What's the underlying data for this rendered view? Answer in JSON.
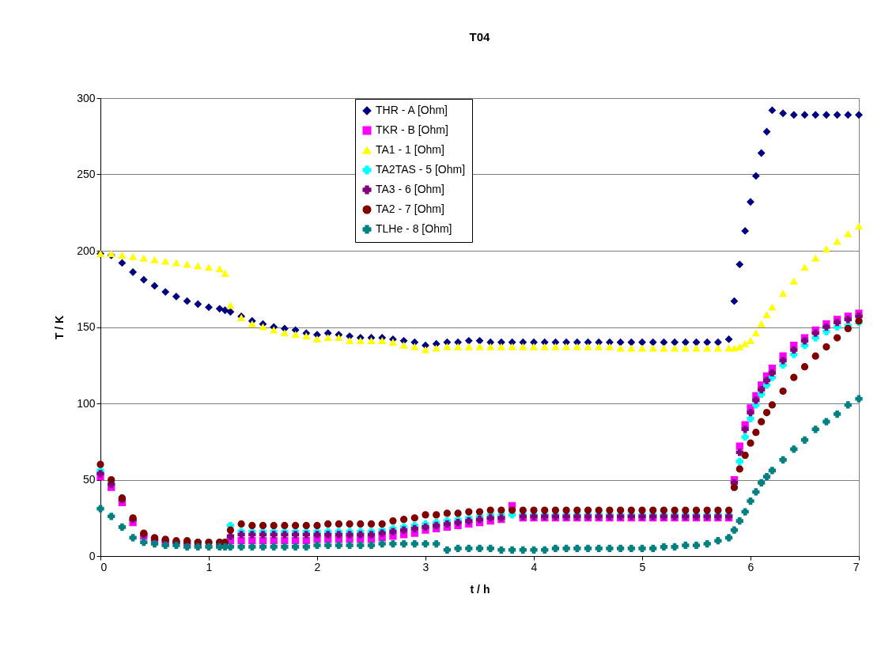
{
  "chart_data": {
    "type": "scatter",
    "title": "T04",
    "xlabel": "t / h",
    "ylabel": "T / K",
    "x": [
      0,
      0.1,
      0.2,
      0.3,
      0.4,
      0.5,
      0.6,
      0.7,
      0.8,
      0.9,
      1.0,
      1.1,
      1.15,
      1.2,
      1.3,
      1.4,
      1.5,
      1.6,
      1.7,
      1.8,
      1.9,
      2.0,
      2.1,
      2.2,
      2.3,
      2.4,
      2.5,
      2.6,
      2.7,
      2.8,
      2.9,
      3.0,
      3.1,
      3.2,
      3.3,
      3.4,
      3.5,
      3.6,
      3.7,
      3.8,
      3.9,
      4.0,
      4.1,
      4.2,
      4.3,
      4.4,
      4.5,
      4.6,
      4.7,
      4.8,
      4.9,
      5.0,
      5.1,
      5.2,
      5.3,
      5.4,
      5.5,
      5.6,
      5.7,
      5.8,
      5.85,
      5.9,
      5.95,
      6.0,
      6.05,
      6.1,
      6.15,
      6.2,
      6.3,
      6.4,
      6.5,
      6.6,
      6.7,
      6.8,
      6.9,
      7.0
    ],
    "series": [
      {
        "name": "THR - A [Ohm]",
        "color": "#000080",
        "marker": "diamond",
        "values": [
          198,
          197,
          192,
          186,
          181,
          177,
          173,
          170,
          167,
          165,
          163,
          162,
          161,
          160,
          157,
          154,
          152,
          150,
          149,
          148,
          146,
          145,
          146,
          145,
          144,
          143,
          143,
          143,
          142,
          141,
          140,
          138,
          139,
          140,
          140,
          141,
          141,
          140,
          140,
          140,
          140,
          140,
          140,
          140,
          140,
          140,
          140,
          140,
          140,
          140,
          140,
          140,
          140,
          140,
          140,
          140,
          140,
          140,
          140,
          142,
          167,
          191,
          213,
          232,
          249,
          264,
          278,
          292,
          290,
          289,
          289,
          289,
          289,
          289,
          289,
          289
        ]
      },
      {
        "name": "TKR - B [Ohm]",
        "color": "#ff00ff",
        "marker": "square",
        "values": [
          52,
          45,
          35,
          22,
          13,
          10,
          9,
          null,
          8,
          8,
          null,
          8,
          null,
          10,
          10,
          10,
          10,
          10,
          10,
          10,
          10,
          11,
          11,
          11,
          11,
          11,
          11,
          12,
          13,
          14,
          15,
          17,
          18,
          19,
          20,
          21,
          22,
          23,
          24,
          33,
          25,
          25,
          25,
          25,
          25,
          25,
          25,
          25,
          25,
          25,
          25,
          25,
          25,
          25,
          25,
          25,
          25,
          25,
          25,
          25,
          50,
          72,
          86,
          97,
          105,
          112,
          118,
          123,
          131,
          138,
          143,
          148,
          152,
          155,
          157,
          159
        ]
      },
      {
        "name": "TA1 - 1 [Ohm]",
        "color": "#ffff00",
        "marker": "triangle",
        "values": [
          198,
          198,
          197,
          196,
          195,
          194,
          193,
          192,
          191,
          190,
          189,
          188,
          185,
          164,
          156,
          152,
          150,
          148,
          146,
          145,
          144,
          142,
          143,
          143,
          141,
          141,
          141,
          141,
          140,
          138,
          137,
          135,
          136,
          137,
          137,
          137,
          137,
          137,
          137,
          137,
          137,
          137,
          137,
          137,
          137,
          137,
          137,
          137,
          137,
          136,
          136,
          136,
          136,
          136,
          136,
          136,
          136,
          136,
          136,
          136,
          136,
          137,
          139,
          141,
          146,
          152,
          158,
          163,
          172,
          180,
          189,
          195,
          201,
          206,
          211,
          216
        ]
      },
      {
        "name": "TA2TAS - 5 [Ohm]",
        "color": "#00ffff",
        "marker": "cross",
        "values": [
          56,
          48,
          38,
          null,
          null,
          11,
          10,
          9,
          9,
          9,
          9,
          9,
          9,
          20,
          16,
          16,
          16,
          16,
          16,
          16,
          16,
          16,
          16,
          16,
          16,
          16,
          16,
          17,
          18,
          19,
          20,
          21,
          22,
          23,
          24,
          25,
          26,
          27,
          27,
          27,
          27,
          27,
          27,
          27,
          27,
          27,
          27,
          27,
          27,
          27,
          27,
          27,
          27,
          27,
          27,
          27,
          27,
          27,
          27,
          27,
          45,
          62,
          78,
          90,
          99,
          106,
          112,
          117,
          125,
          132,
          138,
          143,
          147,
          150,
          151,
          153
        ]
      },
      {
        "name": "TA3 - 6 [Ohm]",
        "color": "#800080",
        "marker": "cross",
        "values": [
          54,
          47,
          37,
          24,
          14,
          11,
          10,
          9,
          9,
          null,
          null,
          null,
          null,
          13,
          14,
          14,
          14,
          14,
          14,
          14,
          14,
          14,
          14,
          14,
          14,
          14,
          14,
          15,
          16,
          17,
          18,
          19,
          20,
          21,
          22,
          23,
          24,
          25,
          25,
          null,
          26,
          26,
          26,
          26,
          26,
          26,
          26,
          26,
          26,
          26,
          26,
          26,
          26,
          26,
          26,
          26,
          26,
          26,
          26,
          26,
          48,
          68,
          83,
          94,
          102,
          109,
          115,
          120,
          128,
          135,
          141,
          146,
          150,
          153,
          155,
          157
        ]
      },
      {
        "name": "TA2 - 7 [Ohm]",
        "color": "#800000",
        "marker": "circle",
        "values": [
          60,
          50,
          38,
          25,
          15,
          12,
          11,
          10,
          10,
          9,
          9,
          9,
          9,
          17,
          21,
          20,
          20,
          20,
          20,
          20,
          20,
          20,
          21,
          21,
          21,
          21,
          21,
          21,
          23,
          24,
          25,
          27,
          27,
          28,
          28,
          29,
          29,
          30,
          30,
          30,
          30,
          30,
          30,
          30,
          30,
          30,
          30,
          30,
          30,
          30,
          30,
          30,
          30,
          30,
          30,
          30,
          30,
          30,
          30,
          30,
          45,
          57,
          66,
          74,
          81,
          88,
          94,
          99,
          108,
          117,
          124,
          131,
          137,
          143,
          149,
          154
        ]
      },
      {
        "name": "TLHe - 8 [Ohm]",
        "color": "#008080",
        "marker": "cross",
        "values": [
          31,
          26,
          19,
          12,
          9,
          8,
          7,
          7,
          6,
          6,
          6,
          6,
          6,
          6,
          6,
          6,
          6,
          6,
          6,
          6,
          6,
          7,
          7,
          7,
          7,
          7,
          7,
          8,
          8,
          8,
          8,
          8,
          8,
          4,
          5,
          5,
          5,
          5,
          4,
          4,
          4,
          4,
          4,
          5,
          5,
          5,
          5,
          5,
          5,
          5,
          5,
          5,
          5,
          6,
          6,
          7,
          7,
          8,
          10,
          12,
          17,
          23,
          29,
          36,
          42,
          48,
          52,
          56,
          63,
          70,
          76,
          83,
          88,
          93,
          99,
          103
        ]
      }
    ],
    "xlim": [
      0,
      7
    ],
    "xticks": [
      0,
      1,
      2,
      3,
      4,
      5,
      6,
      7
    ],
    "ylim": [
      0,
      300
    ],
    "yticks": [
      0,
      50,
      100,
      150,
      200,
      250,
      300
    ],
    "grid": "y",
    "legend": "top"
  }
}
